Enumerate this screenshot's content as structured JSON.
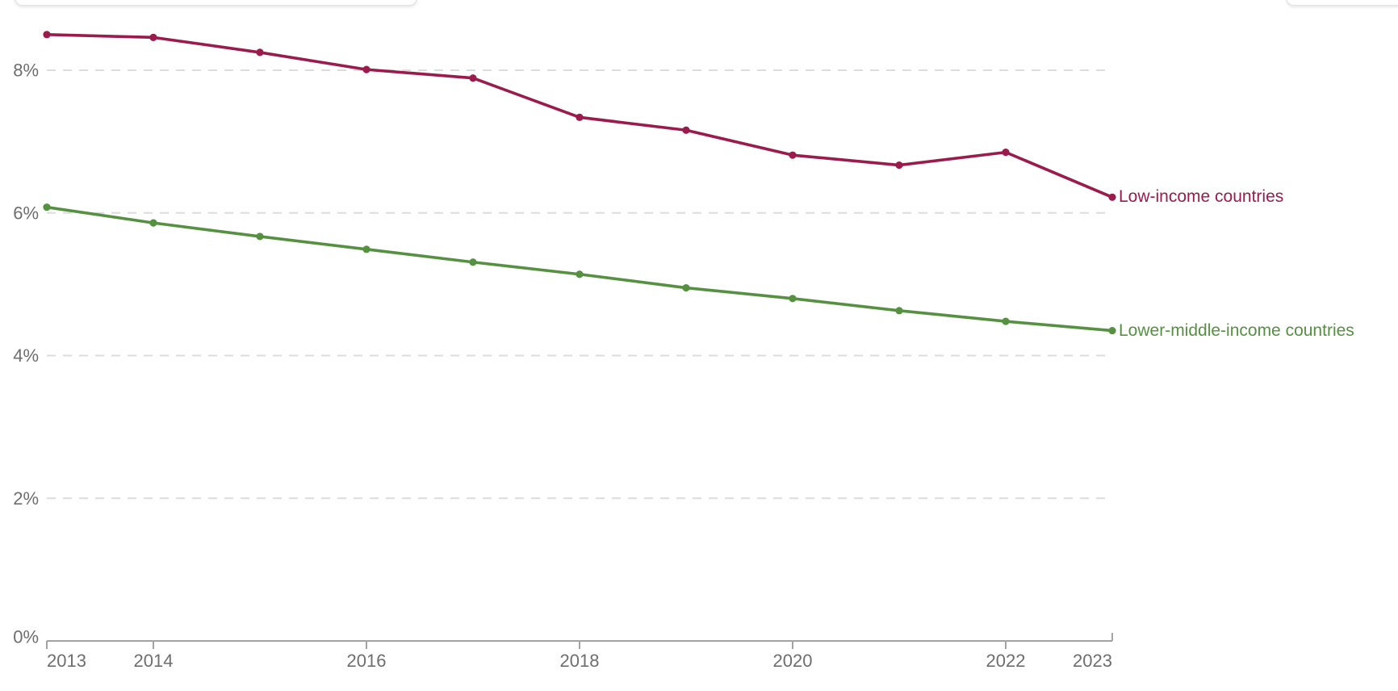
{
  "chart_data": {
    "type": "line",
    "title": "",
    "x": [
      2013,
      2014,
      2015,
      2016,
      2017,
      2018,
      2019,
      2020,
      2021,
      2022,
      2023
    ],
    "series": [
      {
        "name": "Low-income countries",
        "color": "#9B1B4D",
        "values": [
          8.5,
          8.46,
          8.25,
          8.01,
          7.89,
          7.34,
          7.16,
          6.81,
          6.67,
          6.85,
          6.22
        ]
      },
      {
        "name": "Lower-middle-income countries",
        "color": "#559140",
        "values": [
          6.08,
          5.86,
          5.67,
          5.49,
          5.31,
          5.14,
          4.95,
          4.8,
          4.63,
          4.48,
          4.35
        ]
      }
    ],
    "y_axis": {
      "unit": "%",
      "range": [
        0,
        8.9
      ],
      "gridlines": "dashed",
      "ticks": [
        {
          "v": 0,
          "label": "0%"
        },
        {
          "v": 2,
          "label": "2%"
        },
        {
          "v": 4,
          "label": "4%"
        },
        {
          "v": 6,
          "label": "6%"
        },
        {
          "v": 8,
          "label": "8%"
        }
      ]
    },
    "x_axis": {
      "range": [
        2013,
        2023
      ],
      "ticks": [
        {
          "v": 2013,
          "label": "2013"
        },
        {
          "v": 2014,
          "label": "2014"
        },
        {
          "v": 2016,
          "label": "2016"
        },
        {
          "v": 2018,
          "label": "2018"
        },
        {
          "v": 2020,
          "label": "2020"
        },
        {
          "v": 2022,
          "label": "2022"
        },
        {
          "v": 2023,
          "label": "2023"
        }
      ]
    },
    "legend_position": "end-of-line-labels",
    "colors": {
      "gridline": "#dcdcdc",
      "axis": "#a3a3a3",
      "tick_text": "#6e6e6e"
    }
  }
}
